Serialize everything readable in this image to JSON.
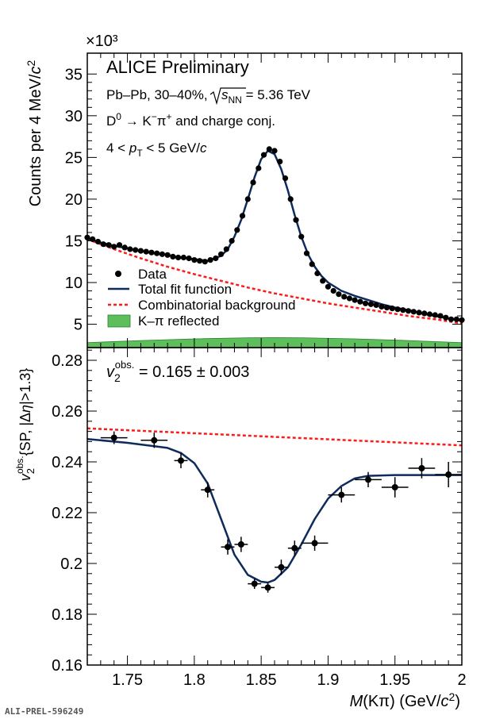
{
  "figure": {
    "watermark": "ALI-PREL-596249",
    "x_axis_label": "M(Kπ) (GeV/c²)",
    "x_ticks": [
      1.75,
      1.8,
      1.85,
      1.9,
      1.95,
      2
    ],
    "x_tick_labels": [
      "1.75",
      "1.8",
      "1.85",
      "1.9",
      "1.95",
      "2"
    ]
  },
  "chart_data": [
    {
      "type": "scatter",
      "panel": "top",
      "title": "ALICE Preliminary",
      "annotations": [
        "Pb–Pb, 30–40%, √sNN = 5.36 TeV",
        "D0 → K−π+ and charge conj.",
        "4 < pT < 5 GeV/c"
      ],
      "ylabel": "Counts per 4 MeV/c²",
      "y_multiplier": "×10³",
      "xlim": [
        1.72,
        2.0
      ],
      "ylim": [
        2.2,
        37.5
      ],
      "y_ticks": [
        5,
        10,
        15,
        20,
        25,
        30,
        35
      ],
      "y_tick_labels": [
        "5",
        "10",
        "15",
        "20",
        "25",
        "30",
        "35"
      ],
      "legend_position": "bottom-left",
      "legend": [
        "Data",
        "Total fit function",
        "Combinatorial background",
        "K–π reflected"
      ],
      "colors": {
        "data": "#000000",
        "fit": "#0d2b5c",
        "background": "#ff1a1a",
        "reflected": "#5cbf5c",
        "reflected_edge": "#2e7d32"
      },
      "series": [
        {
          "name": "Data",
          "x": [
            1.72,
            1.724,
            1.728,
            1.732,
            1.736,
            1.74,
            1.744,
            1.748,
            1.752,
            1.756,
            1.76,
            1.764,
            1.768,
            1.772,
            1.776,
            1.78,
            1.784,
            1.788,
            1.792,
            1.796,
            1.8,
            1.804,
            1.808,
            1.812,
            1.816,
            1.82,
            1.824,
            1.828,
            1.832,
            1.836,
            1.84,
            1.844,
            1.848,
            1.852,
            1.856,
            1.86,
            1.864,
            1.868,
            1.872,
            1.876,
            1.88,
            1.884,
            1.888,
            1.892,
            1.896,
            1.9,
            1.904,
            1.908,
            1.912,
            1.916,
            1.92,
            1.924,
            1.928,
            1.932,
            1.936,
            1.94,
            1.944,
            1.948,
            1.952,
            1.956,
            1.96,
            1.964,
            1.968,
            1.972,
            1.976,
            1.98,
            1.984,
            1.988,
            1.992,
            1.996,
            2.0
          ],
          "y": [
            15.4,
            15.2,
            14.9,
            14.6,
            14.5,
            14.3,
            14.5,
            14.2,
            14.0,
            13.9,
            13.8,
            13.7,
            13.6,
            13.5,
            13.4,
            13.3,
            13.1,
            13.0,
            13.0,
            12.9,
            12.7,
            12.6,
            12.5,
            12.7,
            12.9,
            13.4,
            14.0,
            15.0,
            16.3,
            18.0,
            20.0,
            22.0,
            23.7,
            25.3,
            26.0,
            25.8,
            24.5,
            22.5,
            20.0,
            17.5,
            15.5,
            13.5,
            12.2,
            11.1,
            10.2,
            9.5,
            9.0,
            8.6,
            8.3,
            8.1,
            7.9,
            7.7,
            7.5,
            7.4,
            7.3,
            7.1,
            7.0,
            6.9,
            6.8,
            6.7,
            6.6,
            6.5,
            6.4,
            6.3,
            6.2,
            6.1,
            6.0,
            5.8,
            5.6,
            5.6,
            5.5
          ]
        },
        {
          "name": "Total fit function",
          "x": [
            1.72,
            1.73,
            1.74,
            1.75,
            1.76,
            1.77,
            1.78,
            1.79,
            1.8,
            1.81,
            1.82,
            1.825,
            1.83,
            1.835,
            1.84,
            1.845,
            1.85,
            1.855,
            1.86,
            1.865,
            1.87,
            1.875,
            1.88,
            1.885,
            1.89,
            1.895,
            1.9,
            1.91,
            1.92,
            1.93,
            1.94,
            1.95,
            1.96,
            1.97,
            1.98,
            1.99,
            2.0
          ],
          "y": [
            15.3,
            14.8,
            14.4,
            14.1,
            13.8,
            13.5,
            13.3,
            13.0,
            12.8,
            12.6,
            13.2,
            14.0,
            15.5,
            17.5,
            20.0,
            22.6,
            24.8,
            25.8,
            25.4,
            23.6,
            21.0,
            18.1,
            15.5,
            13.4,
            11.9,
            10.8,
            10.0,
            9.0,
            8.4,
            7.9,
            7.4,
            7.0,
            6.7,
            6.3,
            6.0,
            5.7,
            5.4
          ]
        },
        {
          "name": "Combinatorial background",
          "x": [
            1.72,
            1.74,
            1.76,
            1.78,
            1.8,
            1.82,
            1.84,
            1.86,
            1.88,
            1.9,
            1.92,
            1.94,
            1.96,
            1.98,
            2.0
          ],
          "y": [
            15.2,
            14.0,
            12.9,
            11.9,
            11.0,
            10.2,
            9.4,
            8.7,
            8.1,
            7.5,
            7.0,
            6.5,
            6.0,
            5.6,
            5.1
          ]
        },
        {
          "name": "K–π reflected",
          "x": [
            1.72,
            1.76,
            1.8,
            1.84,
            1.86,
            1.88,
            1.92,
            1.96,
            2.0
          ],
          "y": [
            2.8,
            3.05,
            3.25,
            3.38,
            3.4,
            3.38,
            3.25,
            3.05,
            2.8
          ]
        }
      ]
    },
    {
      "type": "scatter",
      "panel": "bottom",
      "annotation": "v2obs. = 0.165 ± 0.003",
      "ylabel": "v2obs.{SP, |Δη|>1.3}",
      "xlim": [
        1.72,
        2.0
      ],
      "ylim": [
        0.16,
        0.285
      ],
      "y_ticks": [
        0.16,
        0.18,
        0.2,
        0.22,
        0.24,
        0.26,
        0.28
      ],
      "y_tick_labels": [
        "0.16",
        "0.18",
        "0.2",
        "0.22",
        "0.24",
        "0.26",
        "0.28"
      ],
      "colors": {
        "data": "#000000",
        "fit": "#0d2b5c",
        "background": "#ff1a1a"
      },
      "series": [
        {
          "name": "Data",
          "x": [
            1.74,
            1.77,
            1.79,
            1.81,
            1.825,
            1.835,
            1.845,
            1.855,
            1.865,
            1.875,
            1.89,
            1.91,
            1.93,
            1.95,
            1.97,
            1.99
          ],
          "y": [
            0.2495,
            0.2485,
            0.2405,
            0.229,
            0.2065,
            0.2075,
            0.192,
            0.1905,
            0.1985,
            0.206,
            0.208,
            0.227,
            0.233,
            0.23,
            0.2375,
            0.235
          ],
          "xerr": [
            0.01,
            0.01,
            0.005,
            0.005,
            0.005,
            0.005,
            0.005,
            0.005,
            0.005,
            0.005,
            0.01,
            0.01,
            0.01,
            0.01,
            0.01,
            0.01
          ],
          "yerr": [
            0.0025,
            0.003,
            0.003,
            0.003,
            0.003,
            0.003,
            0.002,
            0.002,
            0.003,
            0.003,
            0.003,
            0.003,
            0.003,
            0.004,
            0.004,
            0.005
          ]
        },
        {
          "name": "Total fit function",
          "x": [
            1.72,
            1.75,
            1.78,
            1.79,
            1.8,
            1.81,
            1.82,
            1.83,
            1.84,
            1.85,
            1.855,
            1.86,
            1.87,
            1.88,
            1.89,
            1.9,
            1.91,
            1.92,
            1.93,
            1.95,
            1.97,
            2.0
          ],
          "y": [
            0.249,
            0.2475,
            0.2455,
            0.2435,
            0.2395,
            0.2315,
            0.2175,
            0.2035,
            0.1955,
            0.1928,
            0.1925,
            0.1935,
            0.1985,
            0.2075,
            0.2175,
            0.2255,
            0.2305,
            0.2335,
            0.2345,
            0.2348,
            0.2348,
            0.2348
          ]
        },
        {
          "name": "Combinatorial background",
          "x": [
            1.72,
            2.0
          ],
          "y": [
            0.2532,
            0.2465
          ]
        }
      ]
    }
  ]
}
